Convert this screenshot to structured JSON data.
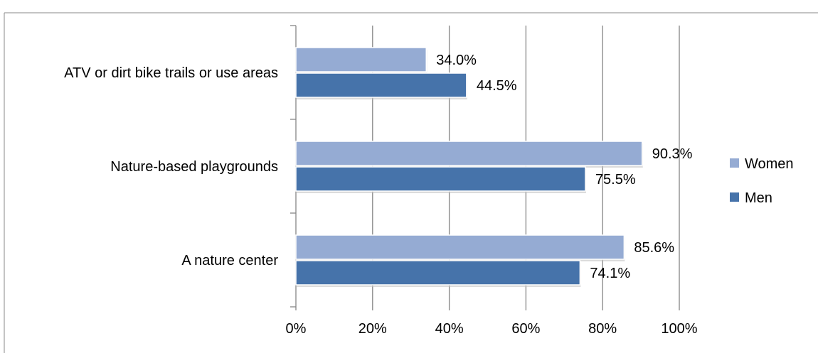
{
  "chart_data": {
    "type": "bar",
    "orientation": "horizontal",
    "title": "",
    "xlabel": "",
    "ylabel": "",
    "categories": [
      "ATV or dirt bike trails or use areas",
      "Nature-based playgrounds",
      "A nature center"
    ],
    "series": [
      {
        "name": "Women",
        "values": [
          34.0,
          90.3,
          85.6
        ],
        "color": "#95abd3"
      },
      {
        "name": "Men",
        "values": [
          44.5,
          75.5,
          74.1
        ],
        "color": "#4673aa"
      }
    ],
    "value_labels": {
      "Women": [
        "34.0%",
        "90.3%",
        "85.6%"
      ],
      "Men": [
        "44.5%",
        "75.5%",
        "74.1%"
      ]
    },
    "xlim": [
      0,
      100
    ],
    "x_ticks": [
      "0%",
      "20%",
      "40%",
      "60%",
      "80%",
      "100%"
    ],
    "grid": "vertical",
    "legend_position": "right"
  }
}
